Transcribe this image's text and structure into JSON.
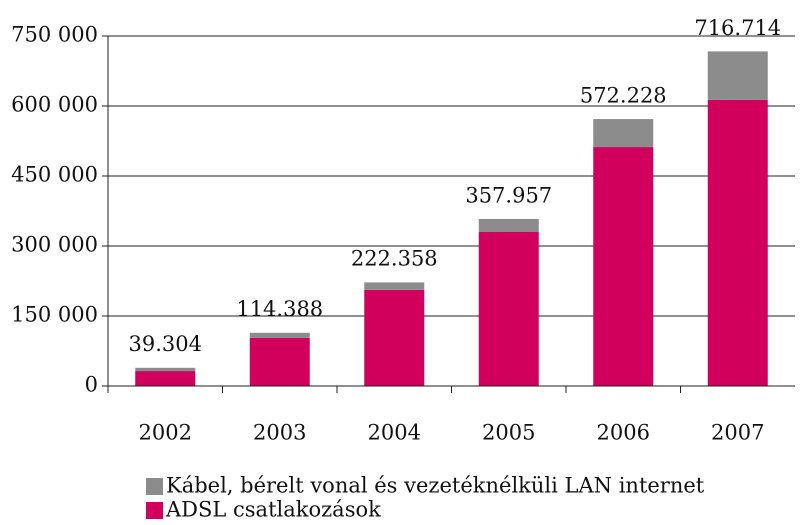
{
  "chart_data": {
    "type": "stacked_bar",
    "categories": [
      "2002",
      "2003",
      "2004",
      "2005",
      "2006",
      "2007"
    ],
    "series": [
      {
        "name": "ADSL csatlakozások",
        "color": "#d1005d",
        "values": [
          32000,
          103000,
          206000,
          330000,
          512000,
          613000
        ]
      },
      {
        "name": "Kábel, bérelt vonal és vezetéknélküli LAN internet",
        "color": "#8c8c8c",
        "values": [
          7000,
          11000,
          16000,
          28000,
          60000,
          104000
        ]
      }
    ],
    "totals": {
      "values": [
        39304,
        114388,
        222358,
        357957,
        572228,
        716714
      ],
      "value_labels": [
        "39.304",
        "114.388",
        "222.358",
        "357.957",
        "572.228",
        "716.714"
      ]
    },
    "ylim": [
      0,
      750000
    ],
    "yticks": [
      0,
      {
        "value": 150000,
        "label": "150 000"
      },
      {
        "value": 300000,
        "label": "300 000"
      },
      {
        "value": 450000,
        "label": "450 000"
      },
      {
        "value": 600000,
        "label": "600 000"
      },
      {
        "value": 750000,
        "label": "750 000"
      }
    ],
    "grid": true
  }
}
